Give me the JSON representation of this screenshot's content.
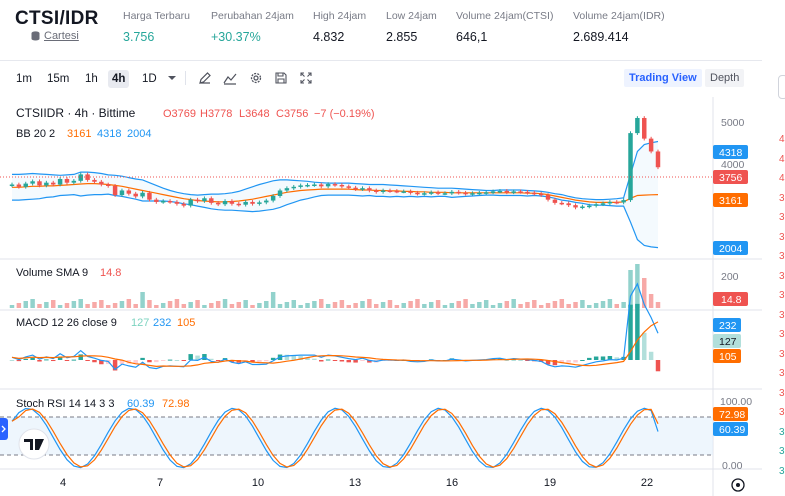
{
  "header": {
    "pair": "CTSI/IDR",
    "exchange": "Cartesi",
    "stats": [
      {
        "label": "Harga Terbaru",
        "value": "3.756",
        "up": true
      },
      {
        "label": "Perubahan 24jam",
        "value": "+30.37%",
        "up": true
      },
      {
        "label": "High 24jam",
        "value": "4.832",
        "up": false
      },
      {
        "label": "Low 24jam",
        "value": "2.855",
        "up": false
      },
      {
        "label": "Volume 24jam(CTSI)",
        "value": "646,1",
        "up": false
      },
      {
        "label": "Volume 24jam(IDR)",
        "value": "2.689.414",
        "up": false
      }
    ]
  },
  "toolbar": {
    "timeframes": [
      "1m",
      "15m",
      "1h",
      "4h",
      "1D"
    ],
    "active_timeframe": "4h",
    "icons": [
      "chevron-down-icon",
      "pencil-icon",
      "indicator-icon",
      "gear-icon",
      "save-icon",
      "fullscreen-icon"
    ],
    "views": [
      "Trading View",
      "Depth"
    ],
    "active_view": "Trading View"
  },
  "legend": {
    "symbol": "CTSIIDR · 4h · Bittime",
    "o": "O3769",
    "h": "H3778",
    "l": "L3648",
    "c": "C3756",
    "change": "−7 (−0.19%)",
    "bb_title": "BB 20 2",
    "bb_basis": "3161",
    "bb_upper": "4318",
    "bb_lower": "2004",
    "vol_title": "Volume SMA 9",
    "vol_value": "14.8",
    "macd_title": "MACD 12 26 close 9",
    "macd_hist": "127",
    "macd_line": "232",
    "macd_signal": "105",
    "stoch_title": "Stoch RSI 14 14 3 3",
    "stoch_k": "60.39",
    "stoch_d": "72.98"
  },
  "axis": {
    "price_ticks": [
      "5000",
      "4000"
    ],
    "vol_ticks": [
      "200"
    ],
    "stoch_ticks": [
      "100.00",
      "0.00"
    ],
    "x_ticks": [
      "4",
      "7",
      "10",
      "13",
      "16",
      "19",
      "22"
    ]
  },
  "price_tags": {
    "bb_upper": "4318",
    "last": "3756",
    "bb_basis": "3161",
    "bb_lower": "2004",
    "vol": "14.8",
    "macd_line": "232",
    "macd_hist": "127",
    "macd_signal": "105",
    "stoch_d": "72.98",
    "stoch_k": "60.39"
  },
  "orderbook_edge": [
    "4",
    "4",
    "4",
    "3",
    "3",
    "3",
    "3",
    "3",
    "3",
    "3",
    "3",
    "3",
    "3",
    "3",
    "3",
    "3",
    "3",
    "3"
  ],
  "colors": {
    "up": "#26a69a",
    "down": "#ef5350",
    "bb_upper": "#2196f3",
    "bb_basis": "#ff6d00",
    "macd": "#2196f3",
    "signal": "#ff6d00",
    "accent": "#2962ff"
  },
  "chart_data": {
    "type": "candlestick",
    "price_range": [
      1800,
      5200
    ],
    "last_close": 3756,
    "candles_close": [
      3380,
      3330,
      3400,
      3450,
      3360,
      3420,
      3380,
      3500,
      3420,
      3460,
      3600,
      3480,
      3440,
      3380,
      3350,
      3150,
      3250,
      3180,
      3120,
      3200,
      3050,
      3000,
      3020,
      3000,
      2960,
      2920,
      3050,
      3020,
      3080,
      2980,
      2950,
      3020,
      2960,
      2940,
      3000,
      2960,
      2990,
      3030,
      3130,
      3250,
      3300,
      3330,
      3360,
      3370,
      3380,
      3340,
      3390,
      3370,
      3340,
      3310,
      3280,
      3300,
      3250,
      3220,
      3250,
      3240,
      3230,
      3230,
      3200,
      3180,
      3190,
      3210,
      3190,
      3190,
      3220,
      3200,
      3180,
      3190,
      3200,
      3210,
      3230,
      3240,
      3210,
      3230,
      3220,
      3200,
      3180,
      3150,
      3050,
      2980,
      2970,
      2930,
      2880,
      2900,
      2920,
      2950,
      2970,
      3000,
      2990,
      3040,
      4500,
      4830,
      4380,
      4100,
      3756
    ],
    "bb_upper": [
      3600,
      3600,
      3610,
      3620,
      3610,
      3600,
      3590,
      3580,
      3590,
      3600,
      3650,
      3650,
      3640,
      3620,
      3590,
      3580,
      3560,
      3530,
      3500,
      3480,
      3420,
      3360,
      3300,
      3250,
      3210,
      3180,
      3160,
      3150,
      3160,
      3170,
      3170,
      3180,
      3200,
      3230,
      3280,
      3330,
      3380,
      3420,
      3460,
      3480,
      3480,
      3470,
      3460,
      3450,
      3430,
      3420,
      3410,
      3410,
      3410,
      3410,
      3400,
      3390,
      3380,
      3380,
      3380,
      3370,
      3360,
      3350,
      3340,
      3330,
      3320,
      3310,
      3300,
      3300,
      3300,
      3290,
      3280,
      3270,
      3260,
      3250,
      3250,
      3260,
      3260,
      3260,
      3260,
      3250,
      3240,
      3230,
      3210,
      3180,
      3160,
      3120,
      3090,
      3070,
      3060,
      3050,
      3050,
      3060,
      3070,
      3090,
      3600,
      4100,
      4250,
      4290,
      4318
    ],
    "bb_basis": [
      3320,
      3320,
      3330,
      3340,
      3340,
      3350,
      3350,
      3360,
      3370,
      3380,
      3390,
      3400,
      3400,
      3390,
      3380,
      3360,
      3340,
      3310,
      3280,
      3250,
      3220,
      3190,
      3160,
      3130,
      3100,
      3070,
      3050,
      3030,
      3020,
      3010,
      3000,
      3000,
      3010,
      3020,
      3040,
      3060,
      3090,
      3120,
      3150,
      3180,
      3210,
      3230,
      3250,
      3260,
      3270,
      3280,
      3280,
      3280,
      3280,
      3280,
      3270,
      3260,
      3260,
      3250,
      3250,
      3240,
      3240,
      3230,
      3230,
      3220,
      3220,
      3210,
      3210,
      3210,
      3200,
      3200,
      3200,
      3200,
      3200,
      3200,
      3200,
      3200,
      3200,
      3200,
      3200,
      3190,
      3190,
      3180,
      3160,
      3130,
      3100,
      3070,
      3040,
      3020,
      3000,
      2990,
      2990,
      2990,
      2990,
      3000,
      3080,
      3140,
      3150,
      3155,
      3161
    ],
    "bb_lower": [
      3040,
      3040,
      3050,
      3060,
      3070,
      3100,
      3110,
      3140,
      3150,
      3160,
      3130,
      3150,
      3160,
      3160,
      3170,
      3140,
      3120,
      3090,
      3060,
      3020,
      3020,
      3020,
      3020,
      3010,
      2990,
      2960,
      2940,
      2910,
      2880,
      2850,
      2830,
      2820,
      2820,
      2810,
      2800,
      2790,
      2800,
      2820,
      2840,
      2880,
      2940,
      2990,
      3040,
      3070,
      3110,
      3140,
      3150,
      3150,
      3150,
      3150,
      3140,
      3130,
      3140,
      3120,
      3120,
      3110,
      3120,
      3110,
      3120,
      3110,
      3120,
      3110,
      3120,
      3120,
      3100,
      3110,
      3120,
      3130,
      3140,
      3150,
      3150,
      3140,
      3140,
      3140,
      3140,
      3130,
      3140,
      3130,
      3110,
      3080,
      3040,
      3020,
      2990,
      2970,
      2940,
      2930,
      2930,
      2920,
      2910,
      2910,
      2560,
      2180,
      2050,
      2020,
      2004
    ],
    "volume_sma": 14.8,
    "macd": {
      "macd": 232,
      "signal": 105,
      "histogram": 127
    },
    "stoch_rsi": {
      "k": 60.39,
      "d": 72.98
    },
    "x_labels": [
      "4",
      "7",
      "10",
      "13",
      "16",
      "19",
      "22"
    ]
  }
}
